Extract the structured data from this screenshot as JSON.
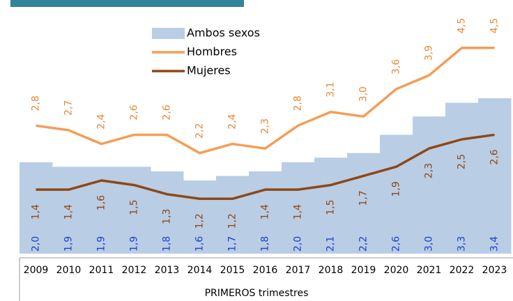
{
  "chart_data": {
    "type": "bar-line",
    "x_label": "PRIMEROS trimestres",
    "categories": [
      "2009",
      "2010",
      "2011",
      "2012",
      "2013",
      "2014",
      "2015",
      "2016",
      "2017",
      "2018",
      "2019",
      "2020",
      "2021",
      "2022",
      "2023"
    ],
    "ylim": [
      0,
      5
    ],
    "series": [
      {
        "name": "Ambos sexos",
        "type": "bar",
        "color": "#b9cde5",
        "label_color": "#1f3fd0",
        "values": [
          2.0,
          1.9,
          1.9,
          1.9,
          1.8,
          1.6,
          1.7,
          1.8,
          2.0,
          2.1,
          2.2,
          2.6,
          3.0,
          3.3,
          3.4
        ],
        "value_labels": [
          "2,0",
          "1,9",
          "1,9",
          "1,9",
          "1,8",
          "1,6",
          "1,7",
          "1,8",
          "2,0",
          "2,1",
          "2,2",
          "2,6",
          "3,0",
          "3,3",
          "3,4"
        ]
      },
      {
        "name": "Hombres",
        "type": "line",
        "color": "#f59d56",
        "label_color": "#e8893a",
        "values": [
          2.8,
          2.7,
          2.4,
          2.6,
          2.6,
          2.2,
          2.4,
          2.3,
          2.8,
          3.1,
          3.0,
          3.6,
          3.9,
          4.5,
          4.5
        ],
        "value_labels": [
          "2,8",
          "2,7",
          "2,4",
          "2,6",
          "2,6",
          "2,2",
          "2,4",
          "2,3",
          "2,8",
          "3,1",
          "3,0",
          "3,6",
          "3,9",
          "4,5",
          "4,5"
        ]
      },
      {
        "name": "Mujeres",
        "type": "line",
        "color": "#8e4715",
        "label_color": "#8e4715",
        "values": [
          1.4,
          1.4,
          1.6,
          1.5,
          1.3,
          1.2,
          1.2,
          1.4,
          1.4,
          1.5,
          1.7,
          1.9,
          2.3,
          2.5,
          2.6
        ],
        "value_labels": [
          "1,4",
          "1,4",
          "1,6",
          "1,5",
          "1,3",
          "1,2",
          "1,2",
          "1,4",
          "1,4",
          "1,5",
          "1,7",
          "1,9",
          "2,3",
          "2,5",
          "2,6"
        ]
      }
    ]
  }
}
